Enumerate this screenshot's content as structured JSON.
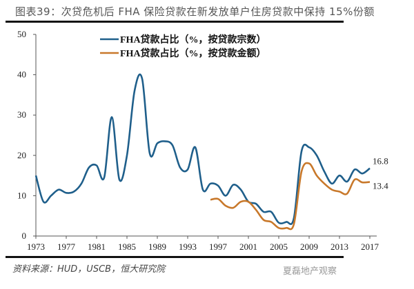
{
  "title": "图表39：次贷危机后 FHA 保险贷款在新发放单户住房贷款中保持 15%份额",
  "source": "资料来源：HUD，USCB，恒大研究院",
  "watermark": "夏磊地产观察",
  "chart_data": {
    "type": "line",
    "xlabel": "",
    "ylabel": "",
    "ylim": [
      0,
      50
    ],
    "xlim": [
      1973,
      2017
    ],
    "yticks": [
      "0",
      "10",
      "20",
      "30",
      "40",
      "50"
    ],
    "xticks": [
      "1973",
      "1977",
      "1981",
      "1985",
      "1989",
      "1993",
      "1997",
      "2001",
      "2005",
      "2009",
      "2013",
      "2017"
    ],
    "legend_position": "top-center",
    "grid": false,
    "series": [
      {
        "name": "FHA贷款占比（%，按贷款宗数）",
        "color": "#1f5f8b",
        "x": [
          1973,
          1974,
          1975,
          1976,
          1977,
          1978,
          1979,
          1980,
          1981,
          1982,
          1983,
          1984,
          1985,
          1986,
          1987,
          1988,
          1989,
          1990,
          1991,
          1992,
          1993,
          1994,
          1995,
          1996,
          1997,
          1998,
          1999,
          2000,
          2001,
          2002,
          2003,
          2004,
          2005,
          2006,
          2007,
          2008,
          2009,
          2010,
          2011,
          2012,
          2013,
          2014,
          2015,
          2016,
          2017
        ],
        "values": [
          15,
          8.5,
          10,
          11.5,
          10.7,
          11,
          13,
          17,
          17.5,
          14.5,
          29.5,
          14,
          20,
          36,
          39,
          20.5,
          23,
          23.5,
          22.5,
          17,
          16.5,
          22,
          11.5,
          13,
          12.5,
          10,
          12.7,
          11.5,
          8.5,
          8,
          6,
          6,
          3.3,
          3.5,
          4.5,
          21,
          22,
          20,
          16,
          13,
          15,
          13.5,
          16.5,
          15.5,
          16.8
        ],
        "end_label": "16.8"
      },
      {
        "name": "FHA贷款占比（%，按贷款金额）",
        "color": "#c8782a",
        "x": [
          1996,
          1997,
          1998,
          1999,
          2000,
          2001,
          2002,
          2003,
          2004,
          2005,
          2006,
          2007,
          2008,
          2009,
          2010,
          2011,
          2012,
          2013,
          2014,
          2015,
          2016,
          2017
        ],
        "values": [
          9,
          9.2,
          7.5,
          7,
          8.5,
          8.5,
          6.5,
          4,
          3.5,
          2,
          2,
          3,
          16,
          18,
          15,
          13,
          11.5,
          11,
          10.5,
          14,
          13.3,
          13.4
        ],
        "end_label": "13.4"
      }
    ]
  }
}
